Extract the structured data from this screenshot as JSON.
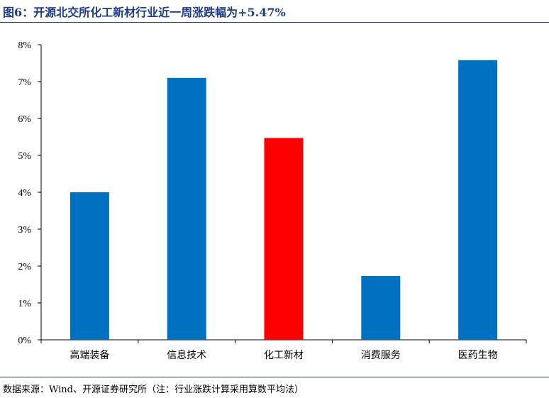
{
  "title": "图6：开源北交所化工新材行业近一周涨跌幅为+5.47%",
  "footer": "数据来源：Wind、开源证券研究所（注：行业涨跌计算采用算数平均法）",
  "chart_data": {
    "type": "bar",
    "title": "图6：开源北交所化工新材行业近一周涨跌幅为+5.47%",
    "xlabel": "",
    "ylabel": "",
    "categories": [
      "高端装备",
      "信息技术",
      "化工新材",
      "消费服务",
      "医药生物"
    ],
    "values": [
      4.0,
      7.1,
      5.47,
      1.73,
      7.58
    ],
    "value_unit": "%",
    "ylim": [
      0,
      8
    ],
    "yticks": [
      0,
      1,
      2,
      3,
      4,
      5,
      6,
      7,
      8
    ],
    "ytick_labels": [
      "0%",
      "1%",
      "2%",
      "3%",
      "4%",
      "5%",
      "6%",
      "7%",
      "8%"
    ],
    "grid": false,
    "legend": "none",
    "colors": {
      "default_bar": "#0070c0",
      "highlight_bar": "#ff0000",
      "highlight_category": "化工新材",
      "title_color": "#1f3c88"
    }
  }
}
